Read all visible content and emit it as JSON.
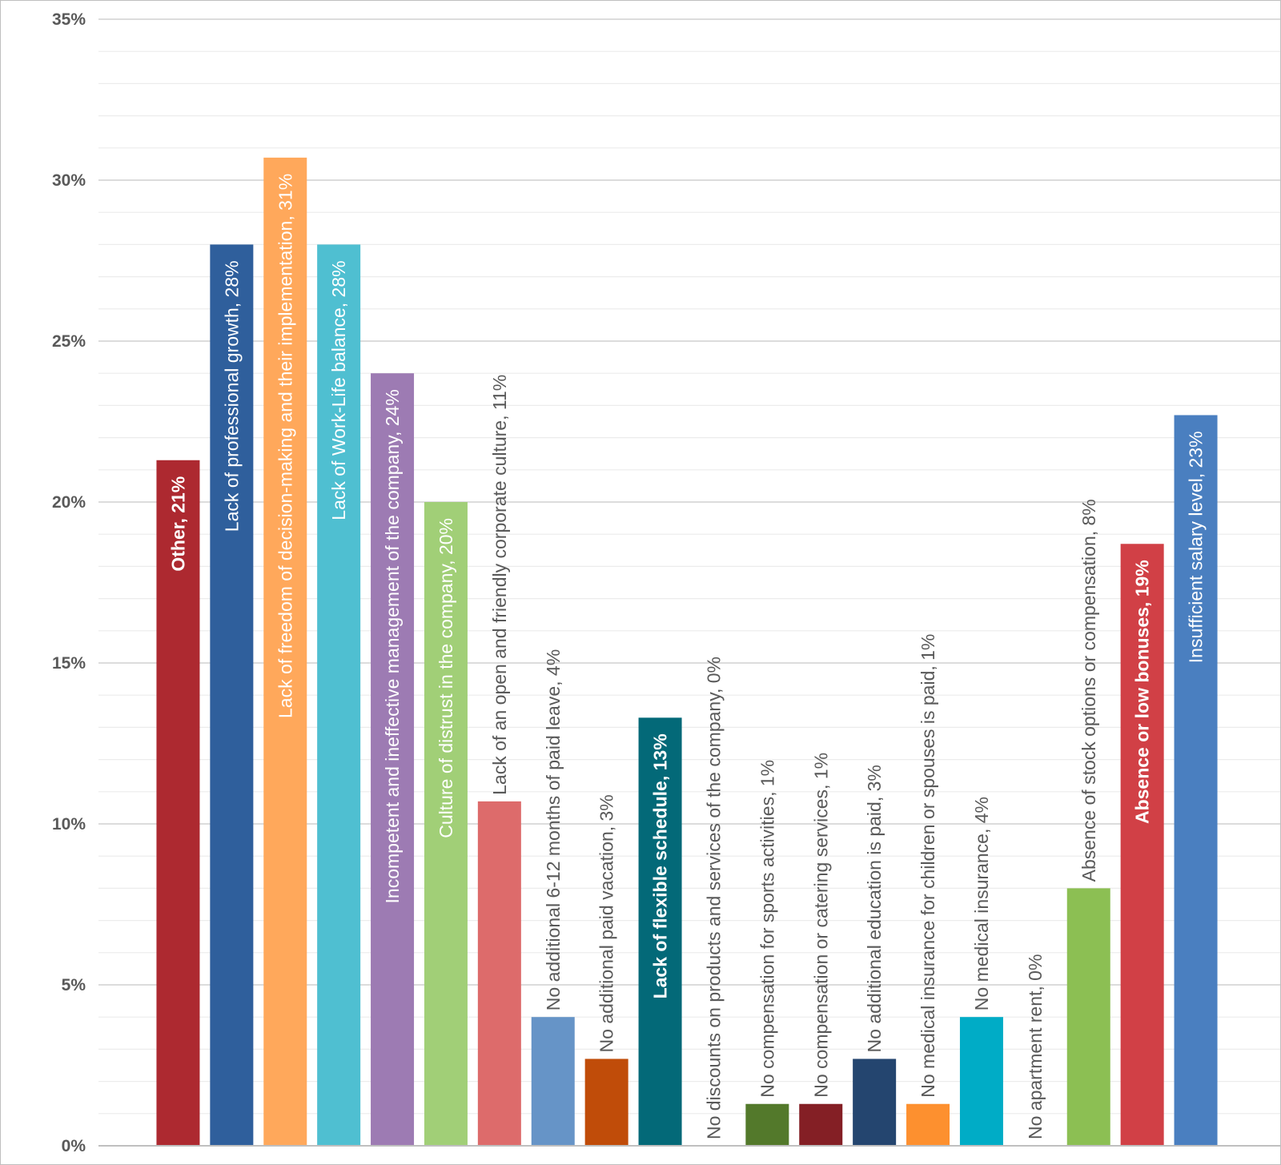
{
  "chart_data": {
    "type": "bar",
    "title": "",
    "xlabel": "",
    "ylabel": "",
    "ylim": [
      0,
      35
    ],
    "y_ticks": [
      "0%",
      "5%",
      "10%",
      "15%",
      "20%",
      "25%",
      "30%",
      "35%"
    ],
    "grid": true,
    "legend": "none",
    "bars": [
      {
        "category": "Other",
        "value": 21.3,
        "label": "Other, 21%",
        "color": "#ad2930",
        "label_position": "inside",
        "label_color": "#ffffff",
        "label_bold": true
      },
      {
        "category": "Lack of professional growth",
        "value": 28.0,
        "label": "Lack of professional growth, 28%",
        "color": "#2f5f9c",
        "label_position": "inside",
        "label_color": "#ffffff",
        "label_bold": false
      },
      {
        "category": "Lack of freedom of decision-making and their implementation",
        "value": 30.7,
        "label": "Lack of freedom of decision-making and their implementation, 31%",
        "color": "#ffa85b",
        "label_position": "inside",
        "label_color": "#ffffff",
        "label_bold": false
      },
      {
        "category": "Lack of Work-Life balance",
        "value": 28.0,
        "label": "Lack of Work-Life balance, 28%",
        "color": "#4fbfd1",
        "label_position": "inside",
        "label_color": "#ffffff",
        "label_bold": false
      },
      {
        "category": "Incompetent and ineffective management of the company",
        "value": 24.0,
        "label": "Incompetent and ineffective management of the company, 24%",
        "color": "#9d7bb3",
        "label_position": "inside",
        "label_color": "#ffffff",
        "label_bold": false
      },
      {
        "category": "Culture of distrust in the company",
        "value": 20.0,
        "label": "Culture of distrust in the company, 20%",
        "color": "#a1cf77",
        "label_position": "inside",
        "label_color": "#ffffff",
        "label_bold": false
      },
      {
        "category": "Lack of an open and friendly corporate culture",
        "value": 10.7,
        "label": "Lack of an open and friendly corporate culture, 11%",
        "color": "#dd6b6b",
        "label_position": "outside",
        "label_color": "#595959",
        "label_bold": false
      },
      {
        "category": "No additional 6-12 months of paid leave",
        "value": 4.0,
        "label": "No additional 6-12 months of paid leave, 4%",
        "color": "#6694c7",
        "label_position": "outside",
        "label_color": "#595959",
        "label_bold": false
      },
      {
        "category": "No additional paid vacation",
        "value": 2.7,
        "label": "No additional paid vacation, 3%",
        "color": "#c04c09",
        "label_position": "outside",
        "label_color": "#595959",
        "label_bold": false
      },
      {
        "category": "Lack of flexible schedule",
        "value": 13.3,
        "label": "Lack of flexible schedule, 13%",
        "color": "#036978",
        "label_position": "inside",
        "label_color": "#ffffff",
        "label_bold": true
      },
      {
        "category": "No discounts on products and services of the company",
        "value": 0.0,
        "label": "No discounts on products and services of the company, 0%",
        "color": "#595959",
        "label_position": "outside",
        "label_color": "#595959",
        "label_bold": false
      },
      {
        "category": "No compensation for sports activities",
        "value": 1.3,
        "label": "No compensation for sports activities, 1%",
        "color": "#53792b",
        "label_position": "outside",
        "label_color": "#595959",
        "label_bold": false
      },
      {
        "category": "No compensation or catering services",
        "value": 1.3,
        "label": "No compensation or catering services, 1%",
        "color": "#841f25",
        "label_position": "outside",
        "label_color": "#595959",
        "label_bold": false
      },
      {
        "category": "No additional education is paid",
        "value": 2.7,
        "label": "No additional education is paid, 3%",
        "color": "#24456f",
        "label_position": "outside",
        "label_color": "#595959",
        "label_bold": false
      },
      {
        "category": "No medical insurance for children or spouses is paid",
        "value": 1.3,
        "label": "No medical insurance for children or spouses is paid, 1%",
        "color": "#fd902f",
        "label_position": "outside",
        "label_color": "#595959",
        "label_bold": false
      },
      {
        "category": "No medical insurance",
        "value": 4.0,
        "label": "No medical insurance, 4%",
        "color": "#00acc6",
        "label_position": "outside",
        "label_color": "#595959",
        "label_bold": false
      },
      {
        "category": "No apartment rent",
        "value": 0.0,
        "label": "No apartment rent, 0%",
        "color": "#595959",
        "label_position": "outside",
        "label_color": "#595959",
        "label_bold": false
      },
      {
        "category": "Absence of stock options or compensation",
        "value": 8.0,
        "label": "Absence of stock options or compensation, 8%",
        "color": "#8cbf53",
        "label_position": "outside",
        "label_color": "#595959",
        "label_bold": false
      },
      {
        "category": "Absence or low bonuses",
        "value": 18.7,
        "label": "Absence or low bonuses, 19%",
        "color": "#d14046",
        "label_position": "inside",
        "label_color": "#ffffff",
        "label_bold": true
      },
      {
        "category": "Insufficient salary level",
        "value": 22.7,
        "label": "Insufficient salary level, 23%",
        "color": "#4a7fc0",
        "label_position": "inside",
        "label_color": "#ffffff",
        "label_bold": false
      }
    ]
  }
}
